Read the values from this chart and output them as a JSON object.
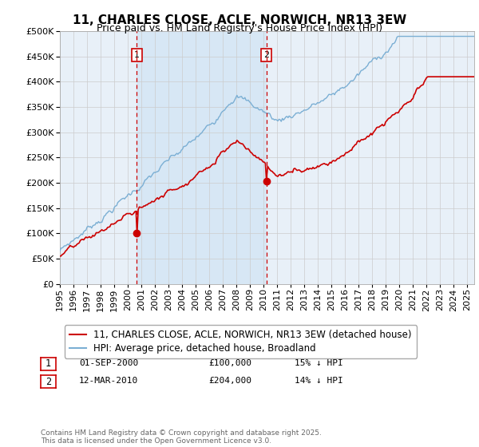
{
  "title": "11, CHARLES CLOSE, ACLE, NORWICH, NR13 3EW",
  "subtitle": "Price paid vs. HM Land Registry's House Price Index (HPI)",
  "ylim": [
    0,
    500000
  ],
  "yticks": [
    0,
    50000,
    100000,
    150000,
    200000,
    250000,
    300000,
    350000,
    400000,
    450000,
    500000
  ],
  "xlim_start": 1995.0,
  "xlim_end": 2025.5,
  "sale1_x": 2000.67,
  "sale1_y": 100000,
  "sale2_x": 2010.2,
  "sale2_y": 204000,
  "red_line_color": "#cc0000",
  "blue_line_color": "#7bafd4",
  "background_color": "#e8f0f8",
  "shade_color": "#d0e4f4",
  "grid_color": "#cccccc",
  "annotation_box_color": "#cc0000",
  "legend_label_red": "11, CHARLES CLOSE, ACLE, NORWICH, NR13 3EW (detached house)",
  "legend_label_blue": "HPI: Average price, detached house, Broadland",
  "table_row1": [
    "1",
    "01-SEP-2000",
    "£100,000",
    "15% ↓ HPI"
  ],
  "table_row2": [
    "2",
    "12-MAR-2010",
    "£204,000",
    "14% ↓ HPI"
  ],
  "footer": "Contains HM Land Registry data © Crown copyright and database right 2025.\nThis data is licensed under the Open Government Licence v3.0.",
  "title_fontsize": 11,
  "subtitle_fontsize": 9,
  "tick_fontsize": 8,
  "legend_fontsize": 8.5
}
